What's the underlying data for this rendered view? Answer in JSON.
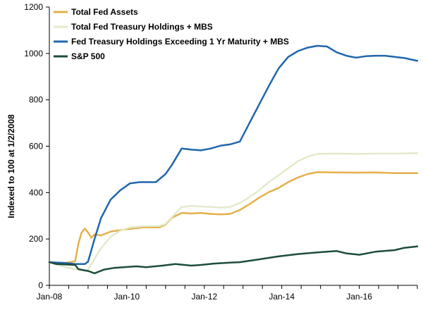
{
  "chart_data": {
    "type": "line",
    "title": "",
    "xlabel": "",
    "ylabel": "Indexed to 100 at 1/2/2008",
    "xlim": [
      "2008-01",
      "2017-07"
    ],
    "ylim": [
      0,
      1200
    ],
    "yticks": [
      0,
      200,
      400,
      600,
      800,
      1000,
      1200
    ],
    "xtick_labels": [
      {
        "value": "2008-01",
        "label": "Jan-08"
      },
      {
        "value": "2010-01",
        "label": "Jan-10"
      },
      {
        "value": "2012-01",
        "label": "Jan-12"
      },
      {
        "value": "2014-01",
        "label": "Jan-14"
      },
      {
        "value": "2016-01",
        "label": "Jan-16"
      }
    ],
    "grid": false,
    "legend": "top-left",
    "series": [
      {
        "name": "Total Fed Assets",
        "color": "#E3B04B",
        "points": [
          [
            "2008-01",
            100
          ],
          [
            "2008-03",
            98
          ],
          [
            "2008-06",
            97
          ],
          [
            "2008-09",
            104
          ],
          [
            "2008-10",
            180
          ],
          [
            "2008-11",
            228
          ],
          [
            "2008-12",
            245
          ],
          [
            "2009-01",
            228
          ],
          [
            "2009-02",
            205
          ],
          [
            "2009-03",
            220
          ],
          [
            "2009-05",
            215
          ],
          [
            "2009-08",
            232
          ],
          [
            "2009-12",
            240
          ],
          [
            "2010-03",
            245
          ],
          [
            "2010-06",
            250
          ],
          [
            "2010-11",
            250
          ],
          [
            "2011-01",
            262
          ],
          [
            "2011-03",
            292
          ],
          [
            "2011-06",
            312
          ],
          [
            "2011-09",
            310
          ],
          [
            "2011-12",
            312
          ],
          [
            "2012-03",
            308
          ],
          [
            "2012-06",
            306
          ],
          [
            "2012-09",
            308
          ],
          [
            "2012-12",
            325
          ],
          [
            "2013-03",
            350
          ],
          [
            "2013-06",
            378
          ],
          [
            "2013-09",
            402
          ],
          [
            "2013-12",
            420
          ],
          [
            "2014-03",
            445
          ],
          [
            "2014-06",
            465
          ],
          [
            "2014-09",
            480
          ],
          [
            "2014-12",
            488
          ],
          [
            "2015-06",
            487
          ],
          [
            "2015-12",
            486
          ],
          [
            "2016-06",
            487
          ],
          [
            "2016-12",
            484
          ],
          [
            "2017-07",
            484
          ]
        ]
      },
      {
        "name": "Total Fed Treasury Holdings + MBS",
        "color": "#E2EBCA",
        "points": [
          [
            "2008-01",
            100
          ],
          [
            "2008-03",
            92
          ],
          [
            "2008-06",
            78
          ],
          [
            "2008-09",
            70
          ],
          [
            "2008-12",
            65
          ],
          [
            "2009-01",
            68
          ],
          [
            "2009-03",
            115
          ],
          [
            "2009-05",
            160
          ],
          [
            "2009-08",
            210
          ],
          [
            "2009-11",
            235
          ],
          [
            "2010-02",
            250
          ],
          [
            "2010-06",
            255
          ],
          [
            "2010-11",
            256
          ],
          [
            "2011-01",
            265
          ],
          [
            "2011-03",
            295
          ],
          [
            "2011-06",
            338
          ],
          [
            "2011-09",
            342
          ],
          [
            "2011-12",
            340
          ],
          [
            "2012-03",
            338
          ],
          [
            "2012-06",
            335
          ],
          [
            "2012-09",
            338
          ],
          [
            "2012-12",
            355
          ],
          [
            "2013-03",
            380
          ],
          [
            "2013-06",
            410
          ],
          [
            "2013-09",
            445
          ],
          [
            "2013-12",
            475
          ],
          [
            "2014-03",
            505
          ],
          [
            "2014-06",
            535
          ],
          [
            "2014-09",
            555
          ],
          [
            "2014-12",
            567
          ],
          [
            "2015-06",
            568
          ],
          [
            "2015-12",
            567
          ],
          [
            "2016-06",
            568
          ],
          [
            "2016-12",
            568
          ],
          [
            "2017-07",
            570
          ]
        ]
      },
      {
        "name": "Fed Treasury Holdings Exceeding 1 Yr Maturity + MBS",
        "color": "#2166AC",
        "points": [
          [
            "2008-01",
            100
          ],
          [
            "2008-06",
            96
          ],
          [
            "2008-09",
            92
          ],
          [
            "2008-12",
            92
          ],
          [
            "2009-01",
            102
          ],
          [
            "2009-03",
            200
          ],
          [
            "2009-05",
            290
          ],
          [
            "2009-08",
            370
          ],
          [
            "2009-11",
            410
          ],
          [
            "2010-02",
            440
          ],
          [
            "2010-05",
            445
          ],
          [
            "2010-10",
            445
          ],
          [
            "2011-01",
            480
          ],
          [
            "2011-03",
            520
          ],
          [
            "2011-06",
            590
          ],
          [
            "2011-09",
            585
          ],
          [
            "2011-12",
            582
          ],
          [
            "2012-03",
            590
          ],
          [
            "2012-06",
            602
          ],
          [
            "2012-09",
            608
          ],
          [
            "2012-12",
            620
          ],
          [
            "2013-03",
            700
          ],
          [
            "2013-06",
            780
          ],
          [
            "2013-09",
            860
          ],
          [
            "2013-12",
            935
          ],
          [
            "2014-03",
            985
          ],
          [
            "2014-06",
            1010
          ],
          [
            "2014-09",
            1025
          ],
          [
            "2014-12",
            1033
          ],
          [
            "2015-03",
            1030
          ],
          [
            "2015-06",
            1005
          ],
          [
            "2015-09",
            990
          ],
          [
            "2015-12",
            982
          ],
          [
            "2016-03",
            988
          ],
          [
            "2016-06",
            990
          ],
          [
            "2016-09",
            990
          ],
          [
            "2016-12",
            985
          ],
          [
            "2017-03",
            980
          ],
          [
            "2017-07",
            968
          ]
        ]
      },
      {
        "name": "S&P 500",
        "color": "#1D4E3A",
        "points": [
          [
            "2008-01",
            100
          ],
          [
            "2008-03",
            92
          ],
          [
            "2008-06",
            90
          ],
          [
            "2008-09",
            88
          ],
          [
            "2008-10",
            70
          ],
          [
            "2008-12",
            64
          ],
          [
            "2009-01",
            62
          ],
          [
            "2009-03",
            52
          ],
          [
            "2009-06",
            68
          ],
          [
            "2009-09",
            75
          ],
          [
            "2009-12",
            78
          ],
          [
            "2010-04",
            82
          ],
          [
            "2010-07",
            78
          ],
          [
            "2010-12",
            85
          ],
          [
            "2011-04",
            92
          ],
          [
            "2011-09",
            85
          ],
          [
            "2011-12",
            88
          ],
          [
            "2012-04",
            94
          ],
          [
            "2012-09",
            98
          ],
          [
            "2012-12",
            100
          ],
          [
            "2013-06",
            112
          ],
          [
            "2013-12",
            125
          ],
          [
            "2014-06",
            135
          ],
          [
            "2014-12",
            142
          ],
          [
            "2015-06",
            148
          ],
          [
            "2015-09",
            138
          ],
          [
            "2016-01",
            132
          ],
          [
            "2016-06",
            145
          ],
          [
            "2016-12",
            152
          ],
          [
            "2017-03",
            162
          ],
          [
            "2017-07",
            168
          ]
        ]
      }
    ]
  }
}
